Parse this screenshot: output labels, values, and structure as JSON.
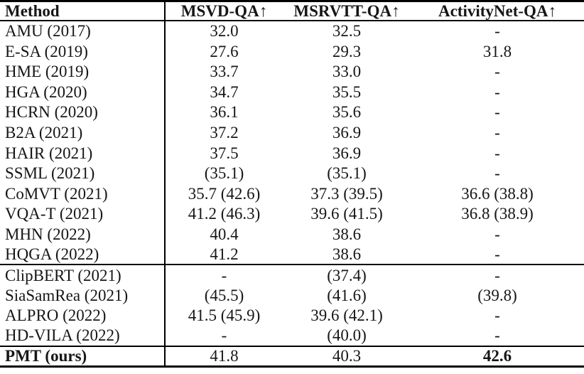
{
  "table": {
    "header": {
      "method_label": "Method",
      "columns": [
        {
          "label": "MSVD-QA",
          "arrow": "↑"
        },
        {
          "label": "MSRVTT-QA",
          "arrow": "↑"
        },
        {
          "label": "ActivityNet-QA",
          "arrow": "↑"
        }
      ]
    },
    "sections": [
      {
        "rows": [
          {
            "method": "AMU (2017)",
            "msvd": "32.0",
            "msrvtt": "32.5",
            "anet": "-"
          },
          {
            "method": "E-SA (2019)",
            "msvd": "27.6",
            "msrvtt": "29.3",
            "anet": "31.8"
          },
          {
            "method": "HME (2019)",
            "msvd": "33.7",
            "msrvtt": "33.0",
            "anet": "-"
          },
          {
            "method": "HGA (2020)",
            "msvd": "34.7",
            "msrvtt": "35.5",
            "anet": "-"
          },
          {
            "method": "HCRN (2020)",
            "msvd": "36.1",
            "msrvtt": "35.6",
            "anet": "-"
          },
          {
            "method": "B2A (2021)",
            "msvd": "37.2",
            "msrvtt": "36.9",
            "anet": "-"
          },
          {
            "method": "HAIR (2021)",
            "msvd": "37.5",
            "msrvtt": "36.9",
            "anet": "-"
          },
          {
            "method": "SSML (2021)",
            "msvd": "(35.1)",
            "msrvtt": "(35.1)",
            "anet": "-"
          },
          {
            "method": "CoMVT (2021)",
            "msvd": "35.7 (42.6)",
            "msrvtt": "37.3 (39.5)",
            "anet": "36.6 (38.8)"
          },
          {
            "method": "VQA-T (2021)",
            "msvd": "41.2 (46.3)",
            "msrvtt": "39.6 (41.5)",
            "anet": "36.8 (38.9)"
          },
          {
            "method": "MHN (2022)",
            "msvd": "40.4",
            "msrvtt": "38.6",
            "anet": "-"
          },
          {
            "method": "HQGA (2022)",
            "msvd": "41.2",
            "msrvtt": "38.6",
            "anet": "-"
          }
        ]
      },
      {
        "rows": [
          {
            "method": "ClipBERT (2021)",
            "msvd": "-",
            "msrvtt": "(37.4)",
            "anet": "-"
          },
          {
            "method": "SiaSamRea (2021)",
            "msvd": "(45.5)",
            "msrvtt": "(41.6)",
            "anet": "(39.8)"
          },
          {
            "method": "ALPRO (2022)",
            "msvd": "41.5 (45.9)",
            "msrvtt": "39.6 (42.1)",
            "anet": "-"
          },
          {
            "method": "HD-VILA (2022)",
            "msvd": "-",
            "msrvtt": "(40.0)",
            "anet": "-"
          }
        ]
      }
    ],
    "final_row": {
      "method": "PMT (ours)",
      "msvd": "41.8",
      "msrvtt": "40.3",
      "anet": "42.6"
    }
  },
  "colors": {
    "background": "#ffffff",
    "text": "#161616",
    "rule": "#000000"
  }
}
